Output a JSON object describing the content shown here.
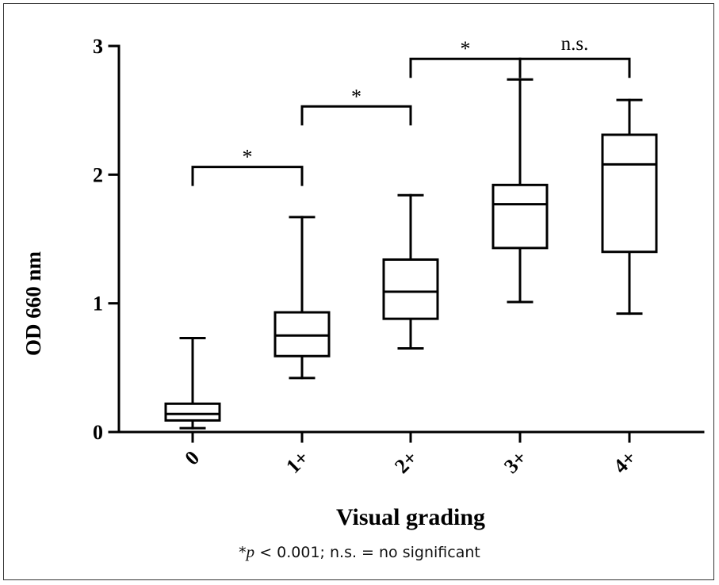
{
  "chart_data": {
    "type": "box",
    "title": "",
    "xlabel": "Visual grading",
    "ylabel": "OD 660 nm",
    "ylim": [
      0,
      3
    ],
    "yticks": [
      0,
      1,
      2,
      3
    ],
    "categories": [
      "0",
      "1+",
      "2+",
      "3+",
      "4+"
    ],
    "boxes": [
      {
        "category": "0",
        "min": 0.03,
        "q1": 0.09,
        "median": 0.14,
        "q3": 0.22,
        "max": 0.73
      },
      {
        "category": "1+",
        "min": 0.42,
        "q1": 0.59,
        "median": 0.75,
        "q3": 0.93,
        "max": 1.67
      },
      {
        "category": "2+",
        "min": 0.65,
        "q1": 0.88,
        "median": 1.09,
        "q3": 1.34,
        "max": 1.84
      },
      {
        "category": "3+",
        "min": 1.01,
        "q1": 1.43,
        "median": 1.77,
        "q3": 1.92,
        "max": 2.74
      },
      {
        "category": "4+",
        "min": 0.92,
        "q1": 1.4,
        "median": 2.08,
        "q3": 2.31,
        "max": 2.58
      }
    ],
    "grid": false,
    "annotations": [
      {
        "from": "0",
        "to": "1+",
        "label": "*",
        "y": 2.06
      },
      {
        "from": "1+",
        "to": "2+",
        "label": "*",
        "y": 2.53
      },
      {
        "from": "2+",
        "to": "3+",
        "label": "*",
        "y": 2.9
      },
      {
        "from": "3+",
        "to": "4+",
        "label": "n.s.",
        "y": 2.9
      }
    ]
  },
  "caption": {
    "star": "*",
    "p_symbol": "p",
    "rest": " < 0.001;  n.s. = no significant"
  }
}
